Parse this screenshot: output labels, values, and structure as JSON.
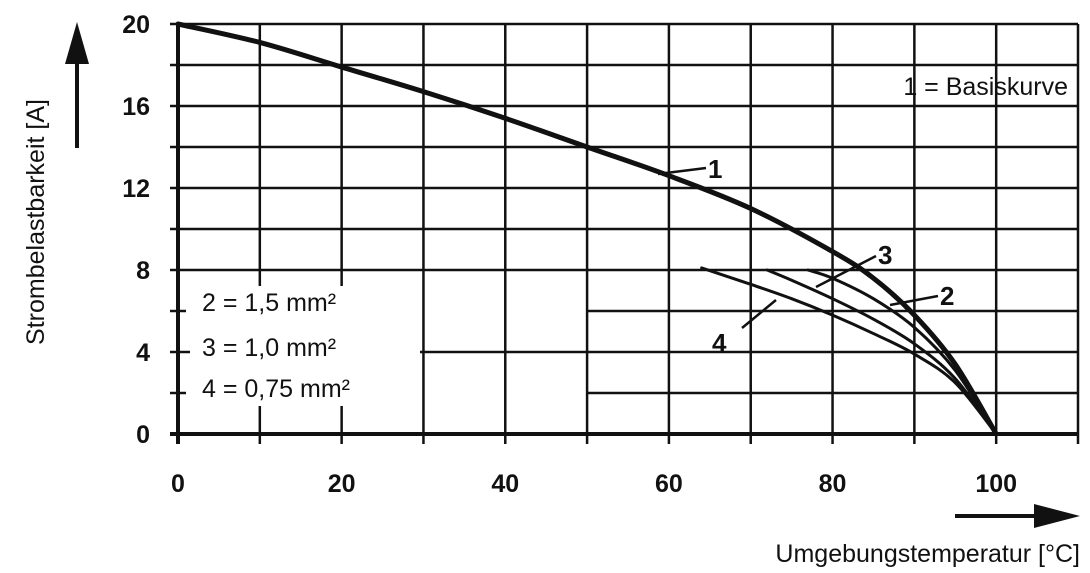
{
  "chart_data": {
    "type": "line",
    "xlabel": "Umgebungstemperatur [°C]",
    "ylabel": "Strombelastbarkeit [A]",
    "xlim": [
      0,
      110
    ],
    "ylim": [
      0,
      20
    ],
    "xticks": [
      0,
      20,
      40,
      60,
      80,
      100
    ],
    "yticks": [
      0,
      4,
      8,
      12,
      16,
      20
    ],
    "grid": true,
    "annotations": {
      "basis": "1 = Basiskurve",
      "legend_lines": [
        "2 = 1,5 mm²",
        "3 = 1,0 mm²",
        "4 = 0,75 mm²"
      ]
    },
    "series": [
      {
        "label": "1",
        "points": [
          [
            0,
            20
          ],
          [
            10,
            19.1
          ],
          [
            20,
            17.9
          ],
          [
            30,
            16.7
          ],
          [
            40,
            15.4
          ],
          [
            50,
            14.0
          ],
          [
            60,
            12.6
          ],
          [
            70,
            11.0
          ],
          [
            80,
            8.9
          ],
          [
            85,
            7.6
          ],
          [
            90,
            5.8
          ],
          [
            95,
            3.4
          ],
          [
            100,
            0
          ]
        ]
      },
      {
        "label": "2",
        "points": [
          [
            77,
            8.0
          ],
          [
            80,
            7.6
          ],
          [
            85,
            6.6
          ],
          [
            90,
            5.2
          ],
          [
            95,
            3.1
          ],
          [
            100,
            0
          ]
        ]
      },
      {
        "label": "3",
        "points": [
          [
            72,
            8.0
          ],
          [
            75,
            7.5
          ],
          [
            80,
            6.6
          ],
          [
            85,
            5.6
          ],
          [
            90,
            4.4
          ],
          [
            95,
            2.7
          ],
          [
            100,
            0
          ]
        ]
      },
      {
        "label": "4",
        "points": [
          [
            64,
            8.1
          ],
          [
            70,
            7.3
          ],
          [
            75,
            6.6
          ],
          [
            80,
            5.8
          ],
          [
            85,
            4.9
          ],
          [
            90,
            3.9
          ],
          [
            95,
            2.5
          ],
          [
            100,
            0
          ]
        ]
      }
    ]
  }
}
